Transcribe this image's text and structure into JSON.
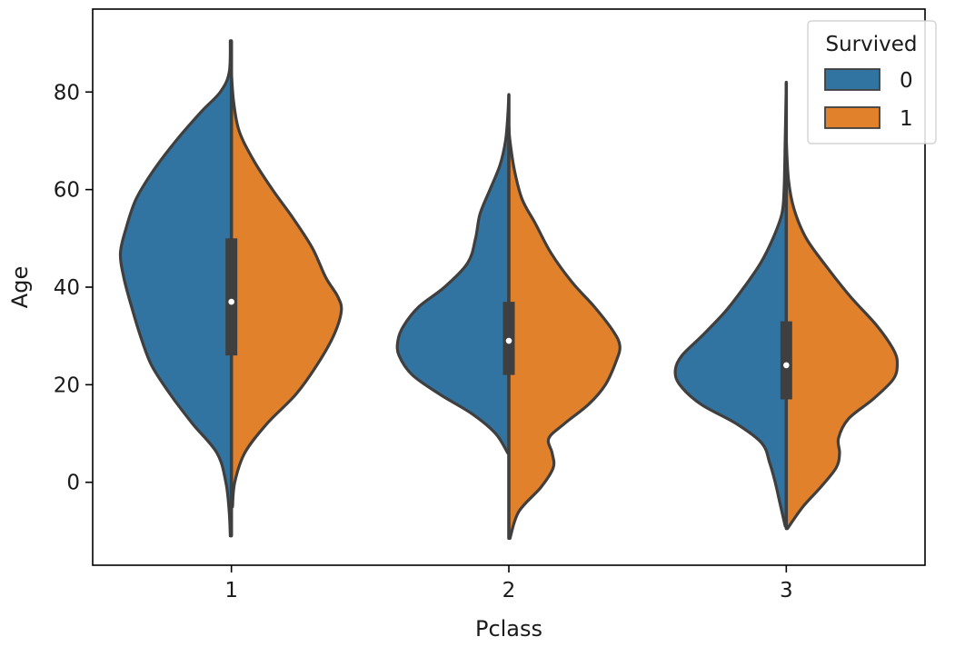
{
  "chart_data": {
    "type": "violin",
    "split": true,
    "xlabel": "Pclass",
    "ylabel": "Age",
    "categories": [
      "1",
      "2",
      "3"
    ],
    "ylim": [
      -17,
      97
    ],
    "yticks": [
      0,
      20,
      40,
      60,
      80
    ],
    "grid": false,
    "legend": {
      "title": "Survived",
      "placement": "top-right",
      "entries": [
        {
          "label": "0",
          "color": "#3274a1"
        },
        {
          "label": "1",
          "color": "#e1812c"
        }
      ]
    },
    "series": [
      {
        "name": "0",
        "side": "left",
        "color": "#3274a1",
        "violins": [
          {
            "category": "1",
            "y_min": -11,
            "y_max": 90.5,
            "profile": [
              [
                -11,
                0.01
              ],
              [
                -6,
                0.02
              ],
              [
                0,
                0.05
              ],
              [
                6,
                0.13
              ],
              [
                12,
                0.35
              ],
              [
                18,
                0.55
              ],
              [
                24,
                0.72
              ],
              [
                30,
                0.82
              ],
              [
                36,
                0.9
              ],
              [
                42,
                0.97
              ],
              [
                47,
                1.0
              ],
              [
                52,
                0.95
              ],
              [
                58,
                0.86
              ],
              [
                64,
                0.7
              ],
              [
                70,
                0.5
              ],
              [
                76,
                0.27
              ],
              [
                80,
                0.1
              ],
              [
                84,
                0.02
              ],
              [
                90.5,
                0.01
              ]
            ]
          },
          {
            "category": "2",
            "y_min": 6,
            "y_max": 79.5,
            "profile": [
              [
                6,
                0.01
              ],
              [
                10,
                0.12
              ],
              [
                14,
                0.33
              ],
              [
                18,
                0.62
              ],
              [
                22,
                0.87
              ],
              [
                26,
                0.99
              ],
              [
                29,
                1.0
              ],
              [
                32,
                0.95
              ],
              [
                36,
                0.81
              ],
              [
                40,
                0.58
              ],
              [
                45,
                0.37
              ],
              [
                50,
                0.3
              ],
              [
                55,
                0.26
              ],
              [
                60,
                0.17
              ],
              [
                65,
                0.08
              ],
              [
                70,
                0.03
              ],
              [
                75,
                0.01
              ],
              [
                79.5,
                0.0
              ]
            ]
          },
          {
            "category": "3",
            "y_min": -9,
            "y_max": 82,
            "profile": [
              [
                -9,
                0.01
              ],
              [
                -4,
                0.06
              ],
              [
                0,
                0.1
              ],
              [
                4,
                0.15
              ],
              [
                8,
                0.22
              ],
              [
                12,
                0.45
              ],
              [
                16,
                0.77
              ],
              [
                20,
                0.96
              ],
              [
                23,
                1.0
              ],
              [
                26,
                0.94
              ],
              [
                30,
                0.76
              ],
              [
                35,
                0.55
              ],
              [
                40,
                0.38
              ],
              [
                45,
                0.23
              ],
              [
                50,
                0.12
              ],
              [
                55,
                0.04
              ],
              [
                60,
                0.02
              ],
              [
                70,
                0.01
              ],
              [
                82,
                0.0
              ]
            ]
          }
        ]
      },
      {
        "name": "1",
        "side": "right",
        "color": "#e1812c",
        "violins": [
          {
            "category": "1",
            "y_min": -5,
            "y_max": 84,
            "profile": [
              [
                -5,
                0.01
              ],
              [
                0,
                0.03
              ],
              [
                6,
                0.12
              ],
              [
                12,
                0.32
              ],
              [
                18,
                0.58
              ],
              [
                24,
                0.77
              ],
              [
                30,
                0.92
              ],
              [
                35,
                0.99
              ],
              [
                38,
                0.96
              ],
              [
                42,
                0.85
              ],
              [
                48,
                0.73
              ],
              [
                54,
                0.56
              ],
              [
                60,
                0.37
              ],
              [
                66,
                0.2
              ],
              [
                72,
                0.07
              ],
              [
                78,
                0.02
              ],
              [
                84,
                0.0
              ]
            ]
          },
          {
            "category": "2",
            "y_min": -11.5,
            "y_max": 73,
            "profile": [
              [
                -11.5,
                0.01
              ],
              [
                -6,
                0.09
              ],
              [
                -1,
                0.29
              ],
              [
                3,
                0.4
              ],
              [
                6,
                0.39
              ],
              [
                9,
                0.36
              ],
              [
                12,
                0.5
              ],
              [
                16,
                0.72
              ],
              [
                20,
                0.87
              ],
              [
                25,
                0.97
              ],
              [
                28,
                1.0
              ],
              [
                31,
                0.94
              ],
              [
                36,
                0.77
              ],
              [
                41,
                0.57
              ],
              [
                47,
                0.38
              ],
              [
                53,
                0.24
              ],
              [
                58,
                0.12
              ],
              [
                64,
                0.05
              ],
              [
                70,
                0.01
              ],
              [
                73,
                0.0
              ]
            ]
          },
          {
            "category": "3",
            "y_min": -9.5,
            "y_max": 70,
            "profile": [
              [
                -9.5,
                0.01
              ],
              [
                -5,
                0.15
              ],
              [
                -1,
                0.31
              ],
              [
                3,
                0.45
              ],
              [
                6,
                0.48
              ],
              [
                9,
                0.47
              ],
              [
                13,
                0.56
              ],
              [
                17,
                0.78
              ],
              [
                21,
                0.96
              ],
              [
                24,
                1.0
              ],
              [
                27,
                0.97
              ],
              [
                32,
                0.82
              ],
              [
                38,
                0.58
              ],
              [
                44,
                0.37
              ],
              [
                50,
                0.18
              ],
              [
                56,
                0.07
              ],
              [
                62,
                0.02
              ],
              [
                70,
                0.0
              ]
            ]
          }
        ]
      }
    ],
    "boxes": [
      {
        "category": "1",
        "q1": 26,
        "median": 37,
        "q3": 50
      },
      {
        "category": "2",
        "q1": 22,
        "median": 29,
        "q3": 37
      },
      {
        "category": "3",
        "q1": 17,
        "median": 24,
        "q3": 33
      }
    ]
  }
}
